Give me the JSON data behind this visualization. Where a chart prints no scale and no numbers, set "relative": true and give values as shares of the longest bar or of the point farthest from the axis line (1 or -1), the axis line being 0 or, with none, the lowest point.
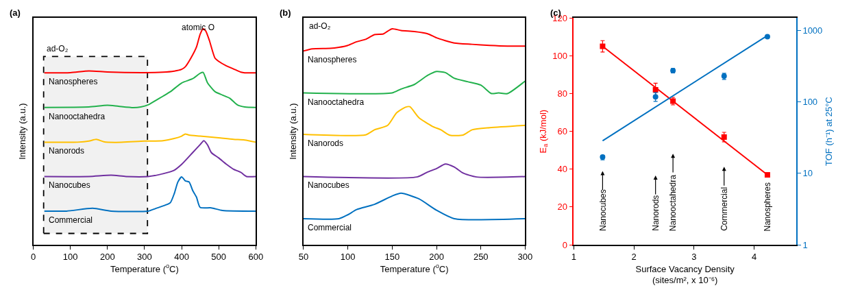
{
  "chart_data": [
    {
      "type": "line",
      "title": "(a)",
      "xlabel": "Temperature ($^{o}$C)",
      "ylabel": "Intensity (a.u.)",
      "relative": true,
      "xlim": [
        0,
        600
      ],
      "xticks": [
        0,
        100,
        200,
        300,
        400,
        500,
        600
      ],
      "legend": false,
      "grid": false,
      "bands": [
        {
          "axis": "x",
          "from": 28,
          "to": 308,
          "label": "ad-O₂",
          "color": "#000000"
        }
      ],
      "annotations": [
        "atomic O"
      ],
      "series": [
        {
          "name": "Nanospheres",
          "color": "#ff0000",
          "x": [
            30,
            100,
            150,
            200,
            300,
            350,
            380,
            400,
            410,
            425,
            440,
            450,
            458,
            465,
            475,
            490,
            500,
            520,
            540,
            560,
            570,
            600
          ],
          "values": [
            0.796,
            0.797,
            0.805,
            0.8,
            0.797,
            0.799,
            0.804,
            0.812,
            0.824,
            0.864,
            0.915,
            0.975,
            1.0,
            0.99,
            0.945,
            0.864,
            0.849,
            0.829,
            0.814,
            0.799,
            0.796,
            0.796
          ]
        },
        {
          "name": "Nanooctahedra",
          "color": "#22b14c",
          "x": [
            30,
            150,
            200,
            230,
            270,
            290,
            310,
            330,
            350,
            370,
            400,
            430,
            450,
            458,
            470,
            490,
            510,
            530,
            550,
            570,
            600
          ],
          "values": [
            0.636,
            0.638,
            0.646,
            0.641,
            0.635,
            0.638,
            0.648,
            0.668,
            0.688,
            0.709,
            0.749,
            0.769,
            0.794,
            0.798,
            0.749,
            0.709,
            0.693,
            0.678,
            0.648,
            0.638,
            0.636
          ]
        },
        {
          "name": "Nanorods",
          "color": "#ffc000",
          "x": [
            30,
            120,
            150,
            170,
            190,
            220,
            300,
            350,
            380,
            400,
            410,
            420,
            450,
            500,
            540,
            570,
            600
          ],
          "values": [
            0.475,
            0.475,
            0.48,
            0.488,
            0.477,
            0.474,
            0.48,
            0.482,
            0.492,
            0.503,
            0.513,
            0.508,
            0.503,
            0.495,
            0.488,
            0.485,
            0.475
          ]
        },
        {
          "name": "Nanocubes",
          "color": "#7030a0",
          "x": [
            30,
            150,
            210,
            250,
            310,
            350,
            380,
            400,
            430,
            450,
            460,
            470,
            480,
            500,
            520,
            540,
            560,
            575,
            600
          ],
          "values": [
            0.316,
            0.316,
            0.322,
            0.316,
            0.316,
            0.329,
            0.345,
            0.372,
            0.427,
            0.464,
            0.482,
            0.462,
            0.427,
            0.402,
            0.374,
            0.35,
            0.335,
            0.316,
            0.316
          ]
        },
        {
          "name": "Commercial",
          "color": "#0070c0",
          "x": [
            30,
            90,
            160,
            210,
            310,
            330,
            360,
            370,
            380,
            390,
            400,
            410,
            420,
            430,
            440,
            450,
            480,
            510,
            600
          ],
          "values": [
            0.156,
            0.156,
            0.169,
            0.156,
            0.156,
            0.168,
            0.186,
            0.196,
            0.236,
            0.291,
            0.314,
            0.296,
            0.291,
            0.251,
            0.221,
            0.173,
            0.171,
            0.159,
            0.156
          ]
        }
      ]
    },
    {
      "type": "line",
      "title": "(b)",
      "xlabel": "Temperature ($^{o}$C)",
      "ylabel": "Intensity (a.u.)",
      "relative": true,
      "xlim": [
        50,
        300
      ],
      "xticks": [
        50,
        100,
        150,
        200,
        250,
        300
      ],
      "legend": false,
      "grid": false,
      "annotations": [
        "ad-O₂"
      ],
      "series": [
        {
          "name": "Nanospheres",
          "color": "#ff0000",
          "x": [
            50,
            60,
            80,
            90,
            100,
            110,
            120,
            130,
            140,
            145,
            150,
            160,
            175,
            190,
            200,
            220,
            240,
            260,
            280,
            300
          ],
          "values": [
            0.897,
            0.907,
            0.909,
            0.914,
            0.923,
            0.94,
            0.951,
            0.973,
            0.976,
            0.989,
            1.0,
            0.992,
            0.987,
            0.977,
            0.958,
            0.934,
            0.928,
            0.923,
            0.92,
            0.92
          ]
        },
        {
          "name": "Nanooctahedra",
          "color": "#22b14c",
          "x": [
            50,
            150,
            160,
            175,
            190,
            200,
            210,
            220,
            235,
            250,
            262,
            270,
            280,
            300
          ],
          "values": [
            0.703,
            0.703,
            0.721,
            0.742,
            0.784,
            0.802,
            0.797,
            0.771,
            0.755,
            0.739,
            0.7,
            0.703,
            0.7,
            0.758
          ]
        },
        {
          "name": "Nanorods",
          "color": "#ffc000",
          "x": [
            50,
            120,
            130,
            145,
            155,
            165,
            170,
            180,
            195,
            205,
            215,
            230,
            240,
            260,
            300
          ],
          "values": [
            0.511,
            0.509,
            0.532,
            0.553,
            0.611,
            0.637,
            0.639,
            0.589,
            0.549,
            0.532,
            0.507,
            0.508,
            0.532,
            0.542,
            0.553
          ]
        },
        {
          "name": "Nanocubes",
          "color": "#7030a0",
          "x": [
            50,
            178,
            190,
            200,
            210,
            220,
            230,
            245,
            300
          ],
          "values": [
            0.316,
            0.314,
            0.337,
            0.353,
            0.374,
            0.36,
            0.332,
            0.314,
            0.316
          ]
        },
        {
          "name": "Commercial",
          "color": "#0070c0",
          "x": [
            50,
            90,
            100,
            110,
            130,
            150,
            160,
            180,
            200,
            220,
            300
          ],
          "values": [
            0.121,
            0.121,
            0.139,
            0.163,
            0.187,
            0.226,
            0.239,
            0.213,
            0.16,
            0.121,
            0.121
          ]
        }
      ]
    },
    {
      "type": "scatter",
      "title": "(c)",
      "xlabel": "Surface Vacancy Density\n(sites/m², x 10⁻⁶)",
      "ylabel": "E$_{a}$ (kJ/mol)",
      "y2label": "TOF (h⁻¹) at 25°C",
      "xlim": [
        1,
        4.7
      ],
      "xticks": [
        1,
        2,
        3,
        4
      ],
      "ylim": [
        0,
        120
      ],
      "yticks": [
        0,
        20,
        40,
        60,
        80,
        100,
        120
      ],
      "y2lim": [
        1,
        1500
      ],
      "y2ticks": [
        1,
        10,
        100,
        1000
      ],
      "log": "y2",
      "legend": false,
      "grid": false,
      "x": [
        1.48,
        2.36,
        2.65,
        3.5,
        4.22
      ],
      "annotations": [
        "Nanocubes",
        "Nanorods",
        "Nanooctahedra",
        "Commercial",
        "Nanospheres"
      ],
      "series": [
        {
          "type": "line",
          "color": "#ff0000",
          "x": [
            1.48,
            4.22
          ],
          "values": [
            105,
            37
          ]
        },
        {
          "type": "line",
          "color": "#0070c0",
          "axis": "y2",
          "x": [
            1.48,
            4.22
          ],
          "values": [
            28.6,
            850
          ]
        },
        {
          "type": "scatter",
          "color": "#ff0000",
          "marker": "square",
          "values": [
            105,
            82,
            76,
            57,
            37
          ],
          "errors": [
            3,
            3.5,
            2,
            2.5,
            null
          ]
        },
        {
          "type": "scatter",
          "color": "#0070c0",
          "marker": "circle",
          "axis": "y2",
          "values": [
            17,
            118,
            275,
            230,
            820
          ],
          "errors": [
            [
              15.5,
              17.8
            ],
            [
              102,
              135
            ],
            [
              255,
              295
            ],
            [
              207,
              252
            ],
            [
              790,
              855
            ]
          ]
        }
      ]
    }
  ]
}
